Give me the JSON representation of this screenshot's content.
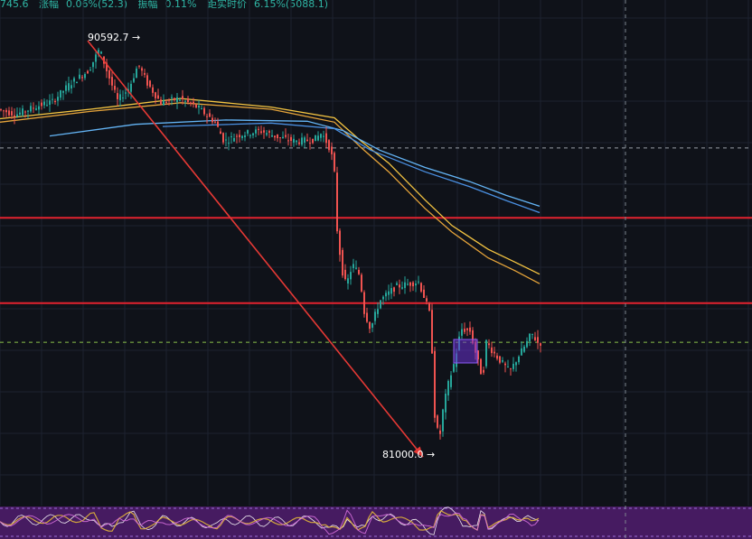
{
  "stats": {
    "price_fragment": "745.6",
    "change_label": "涨幅",
    "change_value": "0.06%(52.3)",
    "amplitude_label": "振幅",
    "amplitude_value": "0.11%",
    "dist_label": "距实时价",
    "dist_value": "6.15%(5088.1)"
  },
  "colors": {
    "background": "#0f1219",
    "up": "#26a69a",
    "down": "#ef5350",
    "hline": "#e3222f",
    "arrow": "#e53935",
    "ma_yellow": "#f5c542",
    "ma_orange": "#e6a43a",
    "ma_lightblue": "#64b5f6",
    "ma_blue": "#4a90e2",
    "indicator_band": "#5a1f7a",
    "box": "#7b3fe4"
  },
  "chart_data": {
    "type": "candlestick",
    "title": "",
    "xlabel": "",
    "ylabel": "",
    "grid": true,
    "ylim": [
      79800,
      91200
    ],
    "annotations": {
      "high_label": "90592.7 →",
      "low_label": "81000.0 →"
    },
    "horizontal_levels": [
      {
        "price": 86480,
        "color": "#e3222f",
        "style": "solid"
      },
      {
        "price": 84500,
        "color": "#e3222f",
        "style": "solid"
      },
      {
        "price": 88100,
        "color": "#9aa0a8",
        "style": "dashed"
      },
      {
        "price": 83590,
        "color": "#8bc34a",
        "style": "dashed"
      }
    ],
    "trend_arrow": {
      "from": [
        97,
        90590
      ],
      "to": [
        468,
        80930
      ]
    },
    "price_path": [
      [
        0,
        89000
      ],
      [
        20,
        88880
      ],
      [
        40,
        89050
      ],
      [
        60,
        89180
      ],
      [
        80,
        89600
      ],
      [
        100,
        89900
      ],
      [
        112,
        90400
      ],
      [
        120,
        89900
      ],
      [
        132,
        89200
      ],
      [
        145,
        89500
      ],
      [
        155,
        90050
      ],
      [
        165,
        89600
      ],
      [
        180,
        89150
      ],
      [
        200,
        89250
      ],
      [
        220,
        89050
      ],
      [
        240,
        88700
      ],
      [
        250,
        88250
      ],
      [
        265,
        88400
      ],
      [
        290,
        88500
      ],
      [
        310,
        88350
      ],
      [
        330,
        88250
      ],
      [
        350,
        88300
      ],
      [
        358,
        88450
      ],
      [
        368,
        88050
      ],
      [
        372,
        87500
      ],
      [
        375,
        86200
      ],
      [
        380,
        85300
      ],
      [
        385,
        84900
      ],
      [
        392,
        85400
      ],
      [
        400,
        85150
      ],
      [
        405,
        84300
      ],
      [
        412,
        83900
      ],
      [
        422,
        84550
      ],
      [
        440,
        84880
      ],
      [
        455,
        84950
      ],
      [
        465,
        85000
      ],
      [
        472,
        84600
      ],
      [
        478,
        84200
      ],
      [
        480,
        83400
      ],
      [
        483,
        81900
      ],
      [
        488,
        81300
      ],
      [
        492,
        82000
      ],
      [
        497,
        82550
      ],
      [
        505,
        83150
      ],
      [
        512,
        83900
      ],
      [
        522,
        83850
      ],
      [
        530,
        83200
      ],
      [
        536,
        82750
      ],
      [
        540,
        83600
      ],
      [
        548,
        83350
      ],
      [
        558,
        83100
      ],
      [
        566,
        82900
      ],
      [
        575,
        83250
      ],
      [
        584,
        83550
      ],
      [
        590,
        83800
      ],
      [
        597,
        83580
      ]
    ],
    "moving_averages": [
      {
        "name": "",
        "color": "#f5c542",
        "points": [
          [
            0,
            88780
          ],
          [
            100,
            89000
          ],
          [
            200,
            89250
          ],
          [
            300,
            89050
          ],
          [
            370,
            88800
          ],
          [
            400,
            88250
          ],
          [
            430,
            87750
          ],
          [
            470,
            86900
          ],
          [
            500,
            86300
          ],
          [
            540,
            85750
          ],
          [
            570,
            85450
          ],
          [
            597,
            85170
          ]
        ]
      },
      {
        "name": "",
        "color": "#e6a43a",
        "points": [
          [
            0,
            88700
          ],
          [
            100,
            88950
          ],
          [
            200,
            89150
          ],
          [
            300,
            89000
          ],
          [
            370,
            88700
          ],
          [
            400,
            88100
          ],
          [
            430,
            87550
          ],
          [
            470,
            86700
          ],
          [
            500,
            86150
          ],
          [
            540,
            85550
          ],
          [
            570,
            85250
          ],
          [
            597,
            84950
          ]
        ]
      },
      {
        "name": "",
        "color": "#64b5f6",
        "points": [
          [
            55,
            88380
          ],
          [
            150,
            88650
          ],
          [
            250,
            88750
          ],
          [
            340,
            88720
          ],
          [
            380,
            88500
          ],
          [
            420,
            88050
          ],
          [
            470,
            87650
          ],
          [
            520,
            87320
          ],
          [
            560,
            87000
          ],
          [
            597,
            86750
          ]
        ]
      },
      {
        "name": "",
        "color": "#4a90e2",
        "points": [
          [
            180,
            88600
          ],
          [
            300,
            88680
          ],
          [
            370,
            88550
          ],
          [
            410,
            88050
          ],
          [
            470,
            87550
          ],
          [
            520,
            87200
          ],
          [
            560,
            86880
          ],
          [
            597,
            86600
          ]
        ]
      }
    ]
  }
}
